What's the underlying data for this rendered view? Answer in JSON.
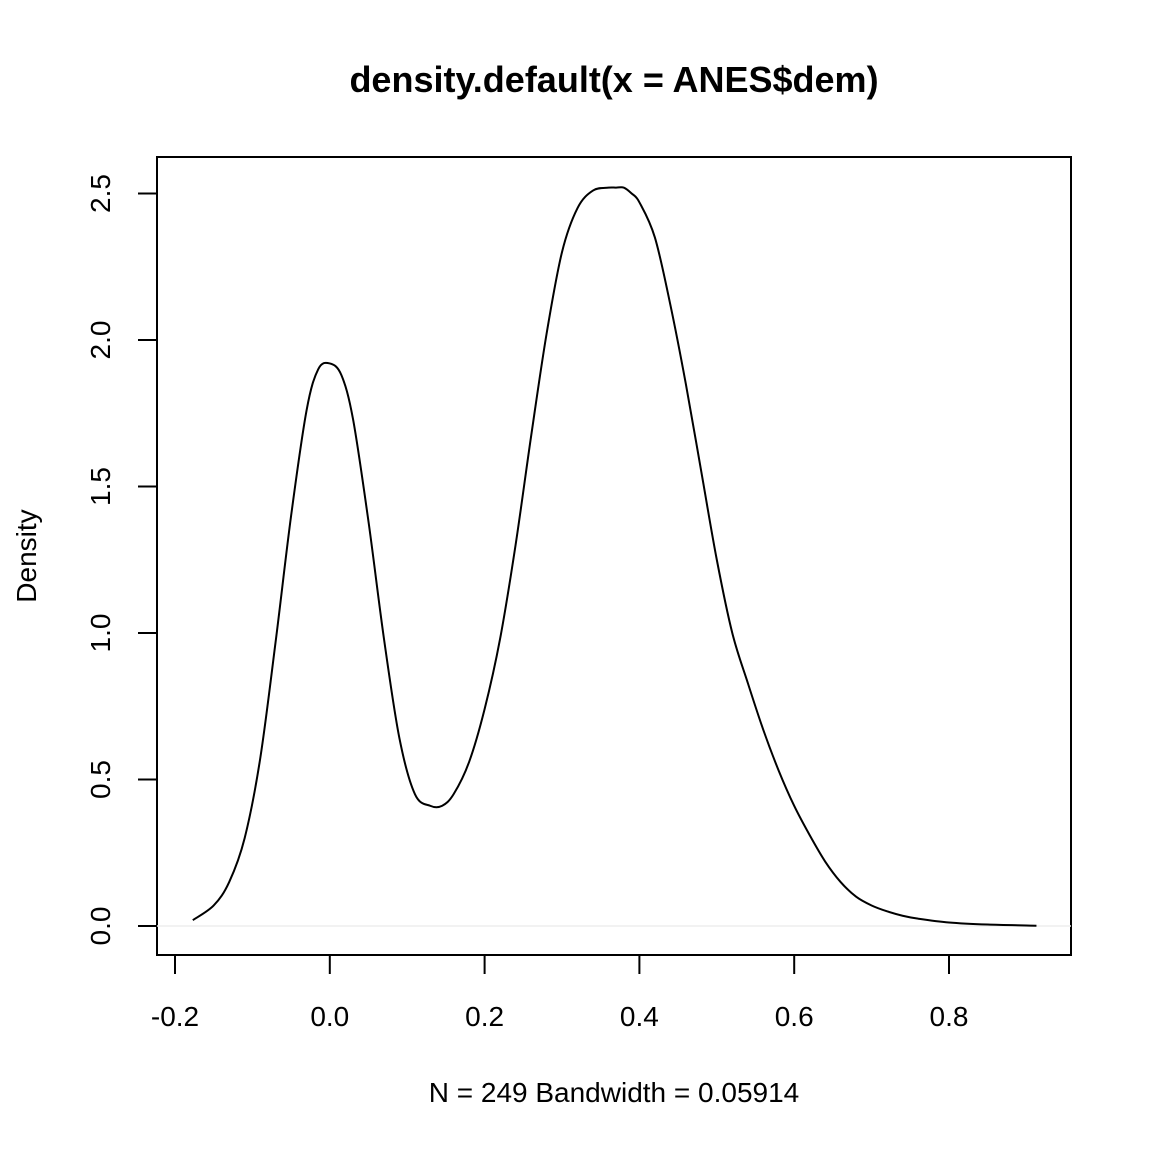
{
  "chart_data": {
    "type": "line",
    "title": "density.default(x = ANES$dem)",
    "xlabel": "N = 249   Bandwidth = 0.05914",
    "ylabel": "Density",
    "xlim": [
      -0.2,
      0.93
    ],
    "ylim": [
      0,
      2.6
    ],
    "xticks": [
      -0.2,
      0.0,
      0.2,
      0.4,
      0.6,
      0.8
    ],
    "xtick_labels": [
      "-0.2",
      "0.0",
      "0.2",
      "0.4",
      "0.6",
      "0.8"
    ],
    "yticks": [
      0.0,
      0.5,
      1.0,
      1.5,
      2.0,
      2.5
    ],
    "ytick_labels": [
      "0.0",
      "0.5",
      "1.0",
      "1.5",
      "2.0",
      "2.5"
    ],
    "baseline": 0,
    "grid": false,
    "series": [
      {
        "x": [
          -0.177,
          -0.15,
          -0.13,
          -0.11,
          -0.09,
          -0.07,
          -0.05,
          -0.03,
          -0.015,
          0.0,
          0.015,
          0.03,
          0.05,
          0.07,
          0.09,
          0.11,
          0.13,
          0.145,
          0.16,
          0.18,
          0.2,
          0.22,
          0.24,
          0.26,
          0.28,
          0.3,
          0.32,
          0.34,
          0.36,
          0.37,
          0.38,
          0.39,
          0.4,
          0.42,
          0.44,
          0.46,
          0.48,
          0.5,
          0.52,
          0.54,
          0.56,
          0.58,
          0.6,
          0.62,
          0.64,
          0.66,
          0.68,
          0.7,
          0.72,
          0.74,
          0.76,
          0.8,
          0.85,
          0.913
        ],
        "y": [
          0.02,
          0.07,
          0.15,
          0.3,
          0.57,
          0.97,
          1.4,
          1.76,
          1.9,
          1.92,
          1.88,
          1.73,
          1.38,
          0.98,
          0.64,
          0.45,
          0.41,
          0.41,
          0.45,
          0.56,
          0.74,
          0.98,
          1.3,
          1.67,
          2.02,
          2.3,
          2.45,
          2.51,
          2.52,
          2.52,
          2.52,
          2.5,
          2.47,
          2.35,
          2.12,
          1.85,
          1.55,
          1.25,
          1.0,
          0.83,
          0.67,
          0.53,
          0.41,
          0.31,
          0.22,
          0.15,
          0.1,
          0.07,
          0.05,
          0.035,
          0.025,
          0.012,
          0.005,
          0.001
        ]
      }
    ]
  }
}
